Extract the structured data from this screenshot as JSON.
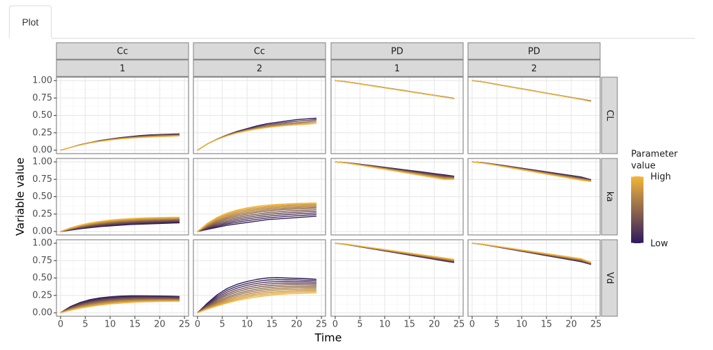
{
  "tabs": [
    {
      "label": "Plot",
      "active": true
    }
  ],
  "chart_data": {
    "type": "line",
    "xlabel": "Time",
    "ylabel": "Variable value",
    "x_ticks": [
      0,
      5,
      10,
      15,
      20,
      25
    ],
    "y_ticks": [
      "0.00",
      "0.25",
      "0.50",
      "0.75",
      "1.00"
    ],
    "xlim": [
      0,
      25
    ],
    "ylim": [
      0,
      1
    ],
    "grid": true,
    "legend": {
      "title": "Parameter value",
      "title_lines": [
        "Parameter",
        "value"
      ],
      "high_label": "High",
      "low_label": "Low",
      "placement": "right",
      "high_color": "#F2B63A",
      "low_color": "#2D1A5E"
    },
    "strip_colors": {
      "strip_bg": "#d9d9d9",
      "panel_border": "#7f7f7f"
    },
    "column_facets": [
      {
        "variable": "Cc",
        "id": "1"
      },
      {
        "variable": "Cc",
        "id": "2"
      },
      {
        "variable": "PD",
        "id": "1"
      },
      {
        "variable": "PD",
        "id": "2"
      }
    ],
    "row_facets": [
      "CL",
      "ka",
      "Vd"
    ],
    "time_points": [
      0,
      2,
      4,
      6,
      8,
      10,
      12,
      14,
      16,
      18,
      20,
      22,
      24
    ],
    "panels": [
      {
        "row": "CL",
        "col": 0,
        "series": [
          {
            "level": 0.0,
            "y": [
              0.0,
              0.04,
              0.08,
              0.11,
              0.14,
              0.16,
              0.18,
              0.195,
              0.21,
              0.22,
              0.225,
              0.23,
              0.235
            ]
          },
          {
            "level": 0.5,
            "y": [
              0.0,
              0.04,
              0.077,
              0.107,
              0.133,
              0.153,
              0.17,
              0.183,
              0.195,
              0.204,
              0.21,
              0.215,
              0.22
            ]
          },
          {
            "level": 1.0,
            "y": [
              0.0,
              0.04,
              0.075,
              0.104,
              0.127,
              0.146,
              0.161,
              0.172,
              0.181,
              0.189,
              0.195,
              0.199,
              0.205
            ]
          }
        ]
      },
      {
        "row": "CL",
        "col": 1,
        "series": [
          {
            "level": 0.0,
            "y": [
              0.0,
              0.09,
              0.16,
              0.22,
              0.27,
              0.31,
              0.35,
              0.38,
              0.4,
              0.42,
              0.44,
              0.45,
              0.46
            ]
          },
          {
            "level": 0.5,
            "y": [
              0.0,
              0.09,
              0.158,
              0.213,
              0.258,
              0.293,
              0.323,
              0.348,
              0.367,
              0.382,
              0.395,
              0.405,
              0.425
            ]
          },
          {
            "level": 1.0,
            "y": [
              0.0,
              0.09,
              0.155,
              0.207,
              0.247,
              0.279,
              0.305,
              0.325,
              0.341,
              0.354,
              0.364,
              0.372,
              0.385
            ]
          }
        ]
      },
      {
        "row": "CL",
        "col": 2,
        "series": [
          {
            "level": 0.0,
            "y": [
              1.0,
              0.985,
              0.965,
              0.943,
              0.921,
              0.899,
              0.877,
              0.855,
              0.833,
              0.811,
              0.789,
              0.767,
              0.745
            ]
          },
          {
            "level": 1.0,
            "y": [
              1.0,
              0.984,
              0.963,
              0.941,
              0.918,
              0.896,
              0.874,
              0.852,
              0.83,
              0.808,
              0.786,
              0.764,
              0.74
            ]
          }
        ]
      },
      {
        "row": "CL",
        "col": 3,
        "series": [
          {
            "level": 0.0,
            "y": [
              1.0,
              0.983,
              0.958,
              0.933,
              0.908,
              0.883,
              0.858,
              0.833,
              0.808,
              0.783,
              0.758,
              0.733,
              0.708
            ]
          },
          {
            "level": 1.0,
            "y": [
              1.0,
              0.982,
              0.956,
              0.93,
              0.905,
              0.88,
              0.855,
              0.83,
              0.805,
              0.78,
              0.755,
              0.73,
              0.7
            ]
          }
        ]
      },
      {
        "row": "ka",
        "col": 0,
        "series": [
          {
            "level": 0.0,
            "y": [
              0.0,
              0.02,
              0.04,
              0.055,
              0.07,
              0.08,
              0.09,
              0.1,
              0.105,
              0.11,
              0.115,
              0.12,
              0.125
            ]
          },
          {
            "level": 0.25,
            "y": [
              0.0,
              0.028,
              0.052,
              0.072,
              0.089,
              0.102,
              0.113,
              0.122,
              0.129,
              0.135,
              0.14,
              0.144,
              0.148
            ]
          },
          {
            "level": 0.5,
            "y": [
              0.0,
              0.036,
              0.066,
              0.09,
              0.109,
              0.124,
              0.136,
              0.145,
              0.152,
              0.158,
              0.162,
              0.166,
              0.17
            ]
          },
          {
            "level": 0.75,
            "y": [
              0.0,
              0.044,
              0.08,
              0.107,
              0.129,
              0.145,
              0.157,
              0.166,
              0.174,
              0.179,
              0.183,
              0.186,
              0.19
            ]
          },
          {
            "level": 1.0,
            "y": [
              0.0,
              0.052,
              0.092,
              0.123,
              0.146,
              0.163,
              0.176,
              0.185,
              0.192,
              0.197,
              0.2,
              0.203,
              0.205
            ]
          }
        ]
      },
      {
        "row": "ka",
        "col": 1,
        "series": [
          {
            "level": 0.0,
            "y": [
              0.0,
              0.03,
              0.06,
              0.09,
              0.11,
              0.13,
              0.15,
              0.17,
              0.18,
              0.19,
              0.2,
              0.21,
              0.22
            ]
          },
          {
            "level": 0.25,
            "y": [
              0.0,
              0.052,
              0.097,
              0.135,
              0.167,
              0.193,
              0.214,
              0.231,
              0.245,
              0.256,
              0.265,
              0.272,
              0.278
            ]
          },
          {
            "level": 0.5,
            "y": [
              0.0,
              0.074,
              0.134,
              0.182,
              0.22,
              0.25,
              0.274,
              0.292,
              0.306,
              0.317,
              0.325,
              0.331,
              0.336
            ]
          },
          {
            "level": 0.75,
            "y": [
              0.0,
              0.096,
              0.17,
              0.226,
              0.268,
              0.299,
              0.322,
              0.339,
              0.352,
              0.361,
              0.368,
              0.373,
              0.377
            ]
          },
          {
            "level": 1.0,
            "y": [
              0.0,
              0.118,
              0.204,
              0.265,
              0.309,
              0.34,
              0.362,
              0.378,
              0.389,
              0.397,
              0.403,
              0.407,
              0.41
            ]
          }
        ]
      },
      {
        "row": "ka",
        "col": 2,
        "series": [
          {
            "level": 0.0,
            "y": [
              1.0,
              0.99,
              0.975,
              0.958,
              0.941,
              0.923,
              0.905,
              0.887,
              0.869,
              0.851,
              0.833,
              0.815,
              0.795
            ]
          },
          {
            "level": 0.5,
            "y": [
              1.0,
              0.988,
              0.969,
              0.949,
              0.928,
              0.907,
              0.886,
              0.865,
              0.844,
              0.823,
              0.802,
              0.781,
              0.772
            ]
          },
          {
            "level": 1.0,
            "y": [
              1.0,
              0.986,
              0.964,
              0.941,
              0.917,
              0.893,
              0.869,
              0.845,
              0.821,
              0.797,
              0.773,
              0.749,
              0.748
            ]
          }
        ]
      },
      {
        "row": "ka",
        "col": 3,
        "series": [
          {
            "level": 0.0,
            "y": [
              1.0,
              0.99,
              0.972,
              0.952,
              0.931,
              0.91,
              0.889,
              0.868,
              0.847,
              0.826,
              0.805,
              0.784,
              0.745
            ]
          },
          {
            "level": 0.5,
            "y": [
              1.0,
              0.987,
              0.966,
              0.943,
              0.92,
              0.897,
              0.874,
              0.851,
              0.828,
              0.805,
              0.782,
              0.759,
              0.732
            ]
          },
          {
            "level": 1.0,
            "y": [
              1.0,
              0.985,
              0.961,
              0.936,
              0.911,
              0.886,
              0.861,
              0.836,
              0.811,
              0.786,
              0.761,
              0.736,
              0.718
            ]
          }
        ]
      },
      {
        "row": "Vd",
        "col": 0,
        "series": [
          {
            "level": 0.0,
            "y": [
              0.0,
              0.09,
              0.15,
              0.19,
              0.215,
              0.23,
              0.24,
              0.245,
              0.245,
              0.244,
              0.242,
              0.24,
              0.235
            ]
          },
          {
            "level": 0.25,
            "y": [
              0.0,
              0.075,
              0.127,
              0.163,
              0.187,
              0.203,
              0.214,
              0.22,
              0.223,
              0.224,
              0.223,
              0.221,
              0.217
            ]
          },
          {
            "level": 0.5,
            "y": [
              0.0,
              0.06,
              0.104,
              0.136,
              0.159,
              0.175,
              0.186,
              0.193,
              0.197,
              0.199,
              0.199,
              0.198,
              0.196
            ]
          },
          {
            "level": 0.75,
            "y": [
              0.0,
              0.047,
              0.084,
              0.112,
              0.134,
              0.15,
              0.162,
              0.17,
              0.175,
              0.178,
              0.18,
              0.18,
              0.179
            ]
          },
          {
            "level": 1.0,
            "y": [
              0.0,
              0.036,
              0.066,
              0.091,
              0.111,
              0.127,
              0.139,
              0.148,
              0.155,
              0.159,
              0.162,
              0.164,
              0.165
            ]
          }
        ]
      },
      {
        "row": "Vd",
        "col": 1,
        "series": [
          {
            "level": 0.0,
            "y": [
              0.0,
              0.14,
              0.26,
              0.35,
              0.41,
              0.45,
              0.48,
              0.5,
              0.505,
              0.5,
              0.495,
              0.49,
              0.48
            ]
          },
          {
            "level": 0.25,
            "y": [
              0.0,
              0.112,
              0.208,
              0.284,
              0.34,
              0.38,
              0.408,
              0.426,
              0.435,
              0.438,
              0.437,
              0.434,
              0.428
            ]
          },
          {
            "level": 0.5,
            "y": [
              0.0,
              0.087,
              0.163,
              0.226,
              0.276,
              0.314,
              0.341,
              0.36,
              0.372,
              0.379,
              0.382,
              0.382,
              0.38
            ]
          },
          {
            "level": 0.75,
            "y": [
              0.0,
              0.067,
              0.127,
              0.179,
              0.222,
              0.256,
              0.282,
              0.301,
              0.314,
              0.323,
              0.328,
              0.331,
              0.332
            ]
          },
          {
            "level": 1.0,
            "y": [
              0.0,
              0.052,
              0.099,
              0.141,
              0.177,
              0.206,
              0.229,
              0.247,
              0.261,
              0.271,
              0.278,
              0.283,
              0.286
            ]
          }
        ]
      },
      {
        "row": "Vd",
        "col": 2,
        "series": [
          {
            "level": 0.0,
            "y": [
              1.0,
              0.984,
              0.961,
              0.937,
              0.913,
              0.889,
              0.865,
              0.841,
              0.817,
              0.793,
              0.769,
              0.745,
              0.722
            ]
          },
          {
            "level": 0.5,
            "y": [
              1.0,
              0.986,
              0.965,
              0.943,
              0.921,
              0.899,
              0.877,
              0.855,
              0.833,
              0.811,
              0.789,
              0.767,
              0.745
            ]
          },
          {
            "level": 1.0,
            "y": [
              1.0,
              0.988,
              0.969,
              0.949,
              0.929,
              0.909,
              0.889,
              0.869,
              0.849,
              0.829,
              0.809,
              0.789,
              0.768
            ]
          }
        ]
      },
      {
        "row": "Vd",
        "col": 3,
        "series": [
          {
            "level": 0.0,
            "y": [
              1.0,
              0.983,
              0.959,
              0.934,
              0.909,
              0.884,
              0.859,
              0.834,
              0.809,
              0.784,
              0.759,
              0.734,
              0.695
            ]
          },
          {
            "level": 0.5,
            "y": [
              1.0,
              0.985,
              0.963,
              0.94,
              0.917,
              0.894,
              0.871,
              0.848,
              0.825,
              0.802,
              0.779,
              0.756,
              0.71
            ]
          },
          {
            "level": 1.0,
            "y": [
              1.0,
              0.987,
              0.967,
              0.946,
              0.925,
              0.904,
              0.883,
              0.862,
              0.841,
              0.82,
              0.799,
              0.778,
              0.725
            ]
          }
        ]
      }
    ]
  }
}
